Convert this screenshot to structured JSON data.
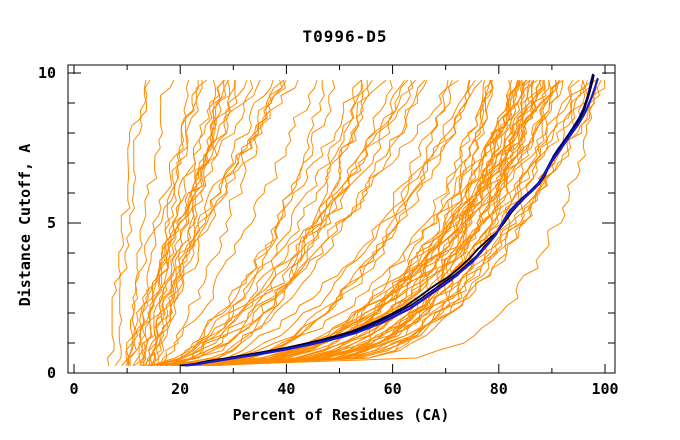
{
  "chart_data": {
    "type": "line",
    "title": "T0996-D5",
    "xlabel": "Percent of Residues (CA)",
    "ylabel": "Distance Cutoff, A",
    "xlim": [
      0,
      100
    ],
    "ylim": [
      0,
      10
    ],
    "grid": false,
    "legend": "none",
    "axes": {
      "x_major_ticks": [
        0,
        20,
        40,
        60,
        80,
        100
      ],
      "x_minor_ticks": [
        10,
        30,
        50,
        70,
        90
      ],
      "y_major_ticks": [
        0,
        5,
        10
      ],
      "y_minor_ticks": [
        1,
        2,
        3,
        4,
        6,
        7,
        8,
        9
      ],
      "tick_direction": "in",
      "frame_color": "#000000"
    },
    "colors": {
      "background": "#ffffff",
      "ensemble_orange": "#ff8c00",
      "model_black": "#000000",
      "model_navy": "#000080",
      "model_blue": "#1a1acd"
    },
    "highlighted_series": [
      {
        "name": "model-black",
        "color": "#000000",
        "width": 1.7,
        "points": [
          [
            20.3,
            0.25
          ],
          [
            22.8,
            0.31
          ],
          [
            25.2,
            0.4
          ],
          [
            28.2,
            0.48
          ],
          [
            31.2,
            0.57
          ],
          [
            34.2,
            0.66
          ],
          [
            37.2,
            0.75
          ],
          [
            40.2,
            0.85
          ],
          [
            43.2,
            0.97
          ],
          [
            46.2,
            1.09
          ],
          [
            49.2,
            1.23
          ],
          [
            52.2,
            1.38
          ],
          [
            54.8,
            1.56
          ],
          [
            57.2,
            1.75
          ],
          [
            59.8,
            1.97
          ],
          [
            62.2,
            2.2
          ],
          [
            64.2,
            2.44
          ],
          [
            66.2,
            2.7
          ],
          [
            68.2,
            2.95
          ],
          [
            70.5,
            3.2
          ],
          [
            72.5,
            3.5
          ],
          [
            74.5,
            3.82
          ],
          [
            76,
            4.12
          ],
          [
            77.8,
            4.42
          ],
          [
            79.8,
            4.72
          ],
          [
            81.2,
            5.05
          ],
          [
            82.4,
            5.35
          ],
          [
            83.6,
            5.6
          ],
          [
            84.8,
            5.82
          ],
          [
            86.2,
            6.05
          ],
          [
            87.6,
            6.3
          ],
          [
            88.6,
            6.55
          ],
          [
            89.4,
            6.85
          ],
          [
            90.3,
            7.15
          ],
          [
            91.2,
            7.4
          ],
          [
            92.2,
            7.65
          ],
          [
            93.2,
            7.9
          ],
          [
            94.2,
            8.18
          ],
          [
            95.2,
            8.45
          ],
          [
            96,
            8.75
          ],
          [
            96.6,
            9.05
          ],
          [
            97.1,
            9.35
          ],
          [
            97.6,
            9.7
          ],
          [
            97.9,
            9.92
          ]
        ]
      },
      {
        "name": "model-navy",
        "color": "#000080",
        "width": 1.7,
        "points": [
          [
            21.5,
            0.26
          ],
          [
            24,
            0.33
          ],
          [
            26.8,
            0.41
          ],
          [
            29.8,
            0.5
          ],
          [
            32.8,
            0.59
          ],
          [
            35.8,
            0.68
          ],
          [
            38.8,
            0.78
          ],
          [
            41.8,
            0.88
          ],
          [
            44.8,
            1.0
          ],
          [
            47.8,
            1.12
          ],
          [
            50.8,
            1.26
          ],
          [
            53.5,
            1.42
          ],
          [
            56,
            1.6
          ],
          [
            58.5,
            1.8
          ],
          [
            61,
            2.02
          ],
          [
            63.5,
            2.26
          ],
          [
            65.5,
            2.5
          ],
          [
            67.5,
            2.75
          ],
          [
            69.5,
            3.0
          ],
          [
            71.8,
            3.28
          ],
          [
            73.8,
            3.58
          ],
          [
            75.8,
            3.9
          ],
          [
            77.2,
            4.2
          ],
          [
            78.8,
            4.5
          ],
          [
            80.2,
            4.82
          ],
          [
            81,
            5.12
          ],
          [
            82,
            5.4
          ],
          [
            83.2,
            5.62
          ],
          [
            84.5,
            5.85
          ],
          [
            86,
            6.08
          ],
          [
            87.4,
            6.33
          ],
          [
            88.4,
            6.6
          ],
          [
            89.3,
            6.9
          ],
          [
            90.2,
            7.2
          ],
          [
            91.1,
            7.45
          ],
          [
            92.1,
            7.7
          ],
          [
            93.1,
            7.95
          ],
          [
            94.1,
            8.22
          ],
          [
            95.1,
            8.5
          ],
          [
            95.9,
            8.8
          ],
          [
            96.5,
            9.1
          ],
          [
            97,
            9.42
          ],
          [
            97.4,
            9.75
          ],
          [
            97.7,
            9.95
          ]
        ]
      },
      {
        "name": "model-blue",
        "color": "#1a1acd",
        "width": 2.2,
        "points": [
          [
            21,
            0.25
          ],
          [
            23.5,
            0.3
          ],
          [
            26,
            0.38
          ],
          [
            29,
            0.46
          ],
          [
            32,
            0.55
          ],
          [
            35,
            0.63
          ],
          [
            38,
            0.72
          ],
          [
            41,
            0.82
          ],
          [
            44,
            0.93
          ],
          [
            47,
            1.05
          ],
          [
            50,
            1.18
          ],
          [
            53,
            1.33
          ],
          [
            55.5,
            1.5
          ],
          [
            58,
            1.68
          ],
          [
            60.5,
            1.9
          ],
          [
            63,
            2.12
          ],
          [
            65,
            2.35
          ],
          [
            67,
            2.6
          ],
          [
            69,
            2.85
          ],
          [
            71,
            3.1
          ],
          [
            73,
            3.4
          ],
          [
            75,
            3.7
          ],
          [
            76.5,
            4.0
          ],
          [
            78,
            4.3
          ],
          [
            79.5,
            4.62
          ],
          [
            80.5,
            4.95
          ],
          [
            81.5,
            5.25
          ],
          [
            82.8,
            5.5
          ],
          [
            84,
            5.72
          ],
          [
            85.5,
            5.95
          ],
          [
            87,
            6.2
          ],
          [
            88,
            6.45
          ],
          [
            89,
            6.75
          ],
          [
            90,
            7.05
          ],
          [
            91,
            7.3
          ],
          [
            92,
            7.55
          ],
          [
            93,
            7.8
          ],
          [
            94,
            8.05
          ],
          [
            95,
            8.3
          ],
          [
            96,
            8.6
          ],
          [
            96.8,
            8.9
          ],
          [
            97.5,
            9.2
          ],
          [
            98.2,
            9.55
          ],
          [
            98.6,
            9.8
          ]
        ]
      }
    ],
    "ensemble": {
      "name": "other-server-models",
      "color": "#ff8c00",
      "count": 95,
      "seed": 9,
      "cutoff_min": 0.25,
      "cutoff_max": 9.75,
      "step": 0.25,
      "noise": 2.4,
      "start_base": 4,
      "start_slope": 0.18,
      "start_jitter": 6,
      "start_max": 26,
      "bands": [
        {
          "weight": 0.28,
          "end_range": [
            13,
            43
          ],
          "exp_range": [
            0.7,
            1.6
          ]
        },
        {
          "weight": 0.24,
          "end_range": [
            43,
            78
          ],
          "exp_range": [
            0.35,
            0.8
          ]
        },
        {
          "weight": 0.48,
          "end_range": [
            78,
            100
          ],
          "exp_range": [
            0.16,
            0.46
          ]
        }
      ]
    }
  }
}
